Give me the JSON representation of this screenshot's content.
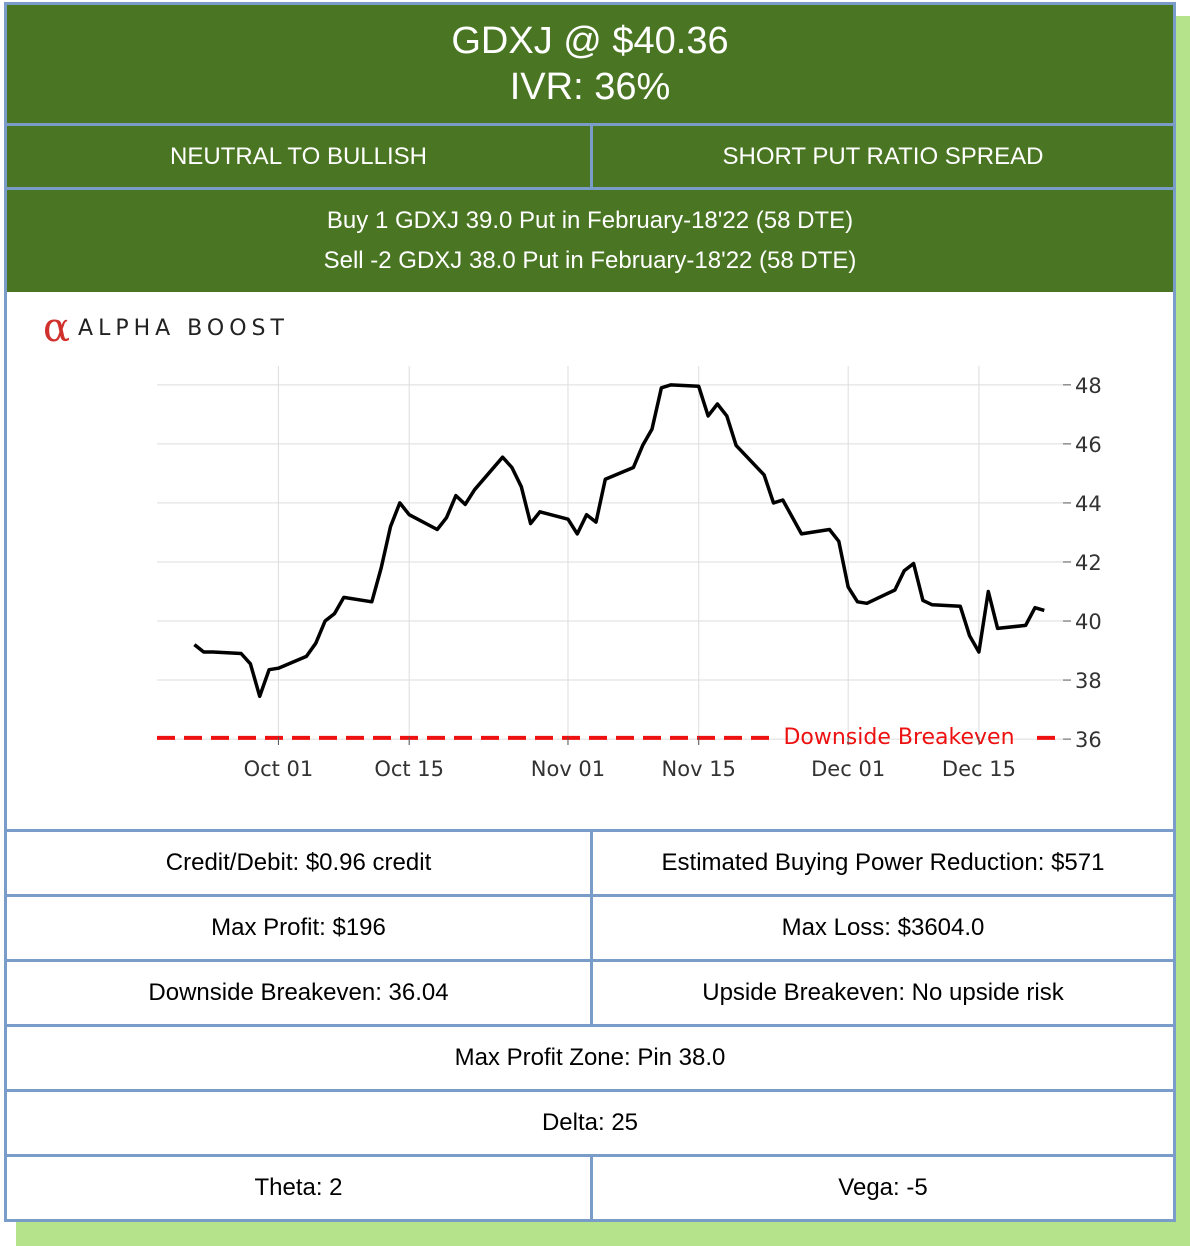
{
  "header": {
    "ticker_price": "GDXJ @ $40.36",
    "ivr": "IVR: 36%"
  },
  "strategy": {
    "bias": "NEUTRAL TO BULLISH",
    "name": "SHORT PUT RATIO SPREAD"
  },
  "legs": [
    "Buy 1 GDXJ 39.0 Put in February-18'22 (58 DTE)",
    "Sell -2 GDXJ 38.0 Put in February-18'22 (58 DTE)"
  ],
  "brand": {
    "symbol": "α",
    "name": "ALPHA BOOST"
  },
  "colors": {
    "header_green": "#4a7623",
    "border_blue": "#7a9cc9",
    "shadow_green": "#b5e38b",
    "breakeven_red": "#ee1111",
    "brand_red": "#d0312d"
  },
  "chart_data": {
    "type": "line",
    "x_tick_labels": [
      "Oct 01",
      "Oct 15",
      "Nov 01",
      "Nov 15",
      "Dec 01",
      "Dec 15"
    ],
    "x_tick_dates": [
      "2021-10-01",
      "2021-10-15",
      "2021-11-01",
      "2021-11-15",
      "2021-12-01",
      "2021-12-15"
    ],
    "y_ticks": [
      36,
      38,
      40,
      42,
      44,
      46,
      48
    ],
    "ylim": [
      35.8,
      48.3
    ],
    "xlim": [
      "2021-09-18",
      "2021-12-24"
    ],
    "grid": true,
    "y_axis_side": "right",
    "series": [
      {
        "x": [
          "2021-09-22",
          "2021-09-23",
          "2021-09-24",
          "2021-09-27",
          "2021-09-28",
          "2021-09-29",
          "2021-09-30",
          "2021-10-01",
          "2021-10-04",
          "2021-10-05",
          "2021-10-06",
          "2021-10-07",
          "2021-10-08",
          "2021-10-11",
          "2021-10-12",
          "2021-10-13",
          "2021-10-14",
          "2021-10-15",
          "2021-10-18",
          "2021-10-19",
          "2021-10-20",
          "2021-10-21",
          "2021-10-22",
          "2021-10-25",
          "2021-10-26",
          "2021-10-27",
          "2021-10-28",
          "2021-10-29",
          "2021-11-01",
          "2021-11-02",
          "2021-11-03",
          "2021-11-04",
          "2021-11-05",
          "2021-11-08",
          "2021-11-09",
          "2021-11-10",
          "2021-11-11",
          "2021-11-12",
          "2021-11-15",
          "2021-11-16",
          "2021-11-17",
          "2021-11-18",
          "2021-11-19",
          "2021-11-22",
          "2021-11-23",
          "2021-11-24",
          "2021-11-26",
          "2021-11-29",
          "2021-11-30",
          "2021-12-01",
          "2021-12-02",
          "2021-12-03",
          "2021-12-06",
          "2021-12-07",
          "2021-12-08",
          "2021-12-09",
          "2021-12-10",
          "2021-12-13",
          "2021-12-14",
          "2021-12-15",
          "2021-12-16",
          "2021-12-17",
          "2021-12-20",
          "2021-12-21",
          "2021-12-22"
        ],
        "y": [
          39.2,
          38.95,
          38.95,
          38.9,
          38.55,
          37.45,
          38.35,
          38.4,
          38.8,
          39.25,
          40.0,
          40.25,
          40.8,
          40.65,
          41.8,
          43.2,
          44.0,
          43.6,
          43.1,
          43.5,
          44.25,
          43.95,
          44.45,
          45.55,
          45.2,
          44.55,
          43.3,
          43.7,
          43.45,
          42.95,
          43.6,
          43.35,
          44.8,
          45.2,
          45.95,
          46.5,
          47.9,
          48.0,
          47.95,
          46.95,
          47.35,
          46.95,
          45.95,
          44.95,
          44.0,
          44.1,
          42.95,
          43.1,
          42.7,
          41.15,
          40.65,
          40.6,
          41.05,
          41.7,
          41.95,
          40.7,
          40.55,
          40.5,
          39.5,
          38.95,
          41.0,
          39.75,
          39.85,
          40.45,
          40.36
        ]
      }
    ],
    "breakeven": {
      "value": 36.04,
      "label": "Downside Breakeven"
    }
  },
  "metrics": {
    "credit_debit": "Credit/Debit: $0.96 credit",
    "bpr": "Estimated Buying Power Reduction: $571",
    "max_profit": "Max Profit: $196",
    "max_loss": "Max Loss: $3604.0",
    "downside_be": "Downside Breakeven: 36.04",
    "upside_be": "Upside Breakeven: No upside risk",
    "profit_zone": "Max Profit Zone: Pin 38.0",
    "delta": "Delta: 25",
    "theta": "Theta: 2",
    "vega": "Vega: -5"
  }
}
